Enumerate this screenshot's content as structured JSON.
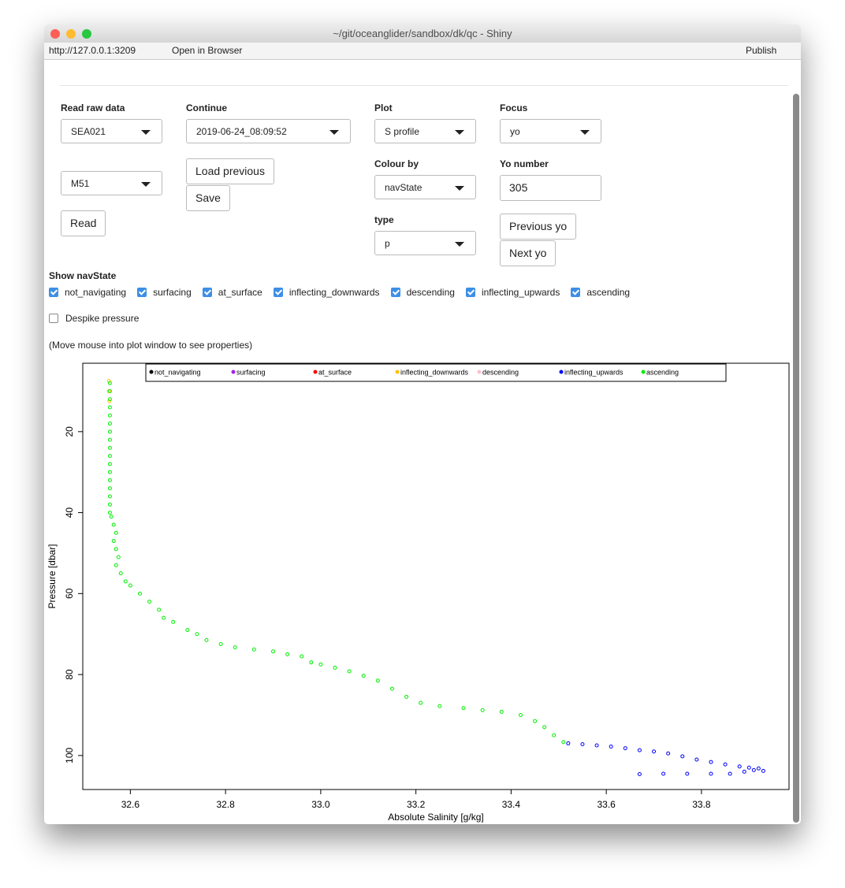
{
  "window": {
    "title": "~/git/oceanglider/sandbox/dk/qc - Shiny",
    "url": "http://127.0.0.1:3209",
    "open_in_browser": "Open in Browser",
    "publish": "Publish"
  },
  "controls": {
    "read_raw_data": {
      "label": "Read raw data",
      "value": "SEA021"
    },
    "mission": {
      "value": "M51"
    },
    "read_button": "Read",
    "continue": {
      "label": "Continue",
      "value": "2019-06-24_08:09:52"
    },
    "load_previous": "Load previous",
    "save": "Save",
    "plot": {
      "label": "Plot",
      "value": "S profile"
    },
    "colour_by": {
      "label": "Colour by",
      "value": "navState"
    },
    "type": {
      "label": "type",
      "value": "p"
    },
    "focus": {
      "label": "Focus",
      "value": "yo"
    },
    "yo_number": {
      "label": "Yo number",
      "value": 305
    },
    "previous_yo": "Previous yo",
    "next_yo": "Next yo",
    "show_navstate": {
      "label": "Show navState",
      "options": [
        "not_navigating",
        "surfacing",
        "at_surface",
        "inflecting_downwards",
        "descending",
        "inflecting_upwards",
        "ascending"
      ]
    },
    "despike": "Despike pressure",
    "hint": "(Move mouse into plot window to see properties)"
  },
  "chart_data": {
    "type": "scatter",
    "xlabel": "Absolute Salinity [g/kg]",
    "ylabel": "Pressure [dbar]",
    "xlim": [
      32.5,
      33.984
    ],
    "ylim": [
      108.4,
      3.1
    ],
    "xticks": [
      32.6,
      32.8,
      {
        "value": 33,
        "label": "33.0"
      },
      33.2,
      33.4,
      33.6,
      33.8
    ],
    "yticks": [
      20,
      40,
      60,
      80,
      100
    ],
    "legend": "top",
    "series": [
      {
        "name": "not_navigating",
        "color": "#000000",
        "x": [],
        "y": []
      },
      {
        "name": "surfacing",
        "color": "#a020f0",
        "x": [],
        "y": []
      },
      {
        "name": "at_surface",
        "color": "#ff0000",
        "x": [],
        "y": []
      },
      {
        "name": "inflecting_downwards",
        "color": "#ffc000",
        "x": [
          32.555,
          32.555,
          32.556
        ],
        "y": [
          7.5,
          10,
          12.5
        ]
      },
      {
        "name": "descending",
        "color": "#ffc0cb",
        "x": [],
        "y": []
      },
      {
        "name": "inflecting_upwards",
        "color": "#0000ff",
        "x": [
          33.52,
          33.55,
          33.58,
          33.61,
          33.64,
          33.67,
          33.7,
          33.73,
          33.76,
          33.79,
          33.82,
          33.85,
          33.88,
          33.9,
          33.92,
          33.91,
          33.93,
          33.67,
          33.72,
          33.77,
          33.82,
          33.86,
          33.89
        ],
        "y": [
          97,
          97.2,
          97.5,
          97.8,
          98.2,
          98.7,
          99,
          99.5,
          100.2,
          101,
          101.6,
          102.2,
          102.7,
          103,
          103.2,
          103.6,
          103.8,
          104.6,
          104.5,
          104.5,
          104.5,
          104.5,
          104
        ]
      },
      {
        "name": "ascending",
        "color": "#00ee00",
        "x": [
          32.557,
          32.557,
          32.557,
          32.557,
          32.557,
          32.557,
          32.557,
          32.557,
          32.557,
          32.557,
          32.557,
          32.557,
          32.557,
          32.557,
          32.557,
          32.557,
          32.557,
          32.56,
          32.565,
          32.57,
          32.565,
          32.57,
          32.575,
          32.57,
          32.58,
          32.59,
          32.6,
          32.62,
          32.64,
          32.66,
          32.67,
          32.69,
          32.72,
          32.74,
          32.76,
          32.79,
          32.82,
          32.86,
          32.9,
          32.93,
          32.96,
          32.98,
          33.0,
          33.03,
          33.06,
          33.09,
          33.12,
          33.15,
          33.18,
          33.21,
          33.25,
          33.3,
          33.34,
          33.38,
          33.42,
          33.45,
          33.47,
          33.49,
          33.51
        ],
        "y": [
          8,
          10,
          12,
          14,
          16,
          18,
          20,
          22,
          24,
          26,
          28,
          30,
          32,
          34,
          36,
          38,
          40,
          41,
          43,
          45,
          47,
          49,
          51,
          53,
          55,
          57,
          58,
          60,
          62,
          64,
          66,
          67,
          69,
          70,
          71.5,
          72.5,
          73.3,
          73.8,
          74.3,
          75,
          75.5,
          77,
          77.5,
          78.3,
          79.2,
          80.3,
          81.5,
          83.5,
          85.5,
          87,
          87.8,
          88.3,
          88.8,
          89.2,
          90,
          91.5,
          93,
          95,
          96.7
        ]
      }
    ]
  }
}
